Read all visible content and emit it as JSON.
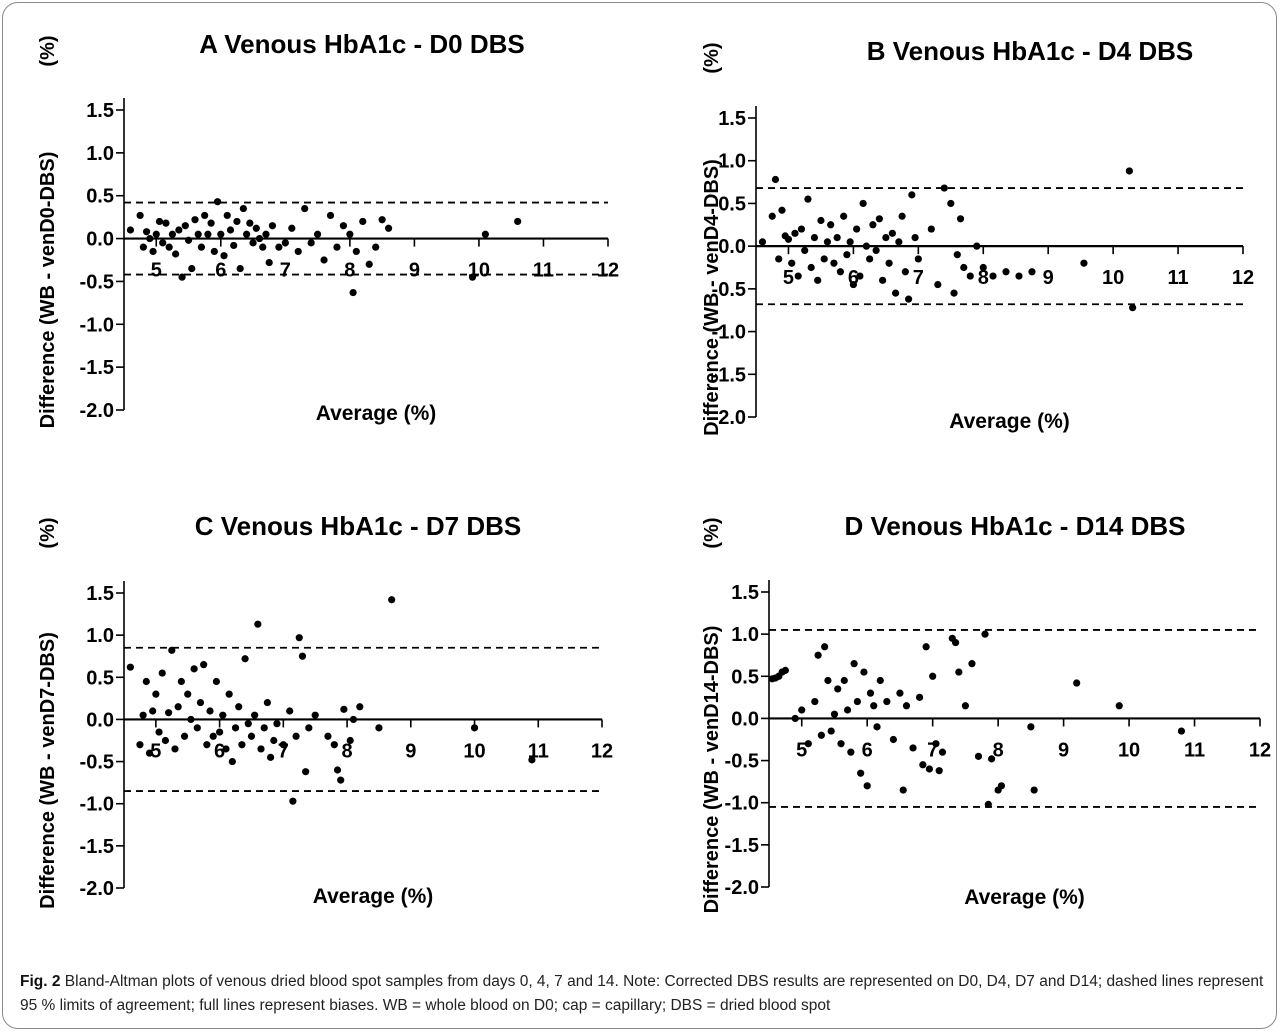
{
  "caption": {
    "label": "Fig. 2",
    "text": "Bland-Altman plots of venous dried blood spot samples from days 0, 4, 7 and 14. Note: Corrected DBS results are represented on D0, D4, D7 and D14; dashed lines represent 95 % limits of agreement; full lines represent biases. WB = whole blood on D0; cap = capillary; DBS = dried blood spot"
  },
  "chart_data": [
    {
      "type": "scatter",
      "title": "A Venous HbA1c - D0 DBS",
      "xlabel": "Average (%)",
      "ylabel": "Difference (WB - venD0-DBS)",
      "ylabel_unit": "(%)",
      "xlim": [
        4.5,
        12
      ],
      "ylim": [
        -2.0,
        1.5
      ],
      "x_ticks": [
        "5",
        "6",
        "7",
        "8",
        "9",
        "10",
        "11",
        "12"
      ],
      "y_ticks": [
        "1.5",
        "1.0",
        "0.5",
        "0.0",
        "-0.5",
        "-1.0",
        "-1.5",
        "-2.0"
      ],
      "bias": 0.0,
      "limits_of_agreement": [
        -0.42,
        0.42
      ],
      "points": [
        [
          4.6,
          0.1
        ],
        [
          4.75,
          0.27
        ],
        [
          4.8,
          -0.1
        ],
        [
          4.85,
          0.08
        ],
        [
          4.9,
          0.0
        ],
        [
          4.95,
          -0.15
        ],
        [
          5.0,
          0.05
        ],
        [
          5.05,
          0.2
        ],
        [
          5.1,
          -0.05
        ],
        [
          5.15,
          0.18
        ],
        [
          5.2,
          -0.1
        ],
        [
          5.25,
          0.05
        ],
        [
          5.3,
          -0.18
        ],
        [
          5.35,
          0.1
        ],
        [
          5.4,
          -0.45
        ],
        [
          5.45,
          0.15
        ],
        [
          5.5,
          -0.02
        ],
        [
          5.55,
          -0.35
        ],
        [
          5.6,
          0.22
        ],
        [
          5.65,
          0.05
        ],
        [
          5.7,
          -0.1
        ],
        [
          5.75,
          0.27
        ],
        [
          5.8,
          0.05
        ],
        [
          5.85,
          0.18
        ],
        [
          5.9,
          -0.15
        ],
        [
          5.95,
          0.43
        ],
        [
          6.0,
          0.05
        ],
        [
          6.05,
          -0.2
        ],
        [
          6.1,
          0.27
        ],
        [
          6.15,
          0.1
        ],
        [
          6.2,
          -0.08
        ],
        [
          6.25,
          0.2
        ],
        [
          6.3,
          -0.35
        ],
        [
          6.35,
          0.35
        ],
        [
          6.4,
          0.05
        ],
        [
          6.45,
          0.18
        ],
        [
          6.5,
          -0.05
        ],
        [
          6.55,
          0.12
        ],
        [
          6.6,
          0.0
        ],
        [
          6.65,
          -0.1
        ],
        [
          6.7,
          0.05
        ],
        [
          6.75,
          -0.28
        ],
        [
          6.8,
          0.15
        ],
        [
          6.9,
          -0.1
        ],
        [
          7.0,
          -0.05
        ],
        [
          7.1,
          0.12
        ],
        [
          7.2,
          -0.15
        ],
        [
          7.3,
          0.35
        ],
        [
          7.4,
          -0.05
        ],
        [
          7.5,
          0.05
        ],
        [
          7.6,
          -0.25
        ],
        [
          7.7,
          0.27
        ],
        [
          7.8,
          -0.1
        ],
        [
          7.9,
          0.15
        ],
        [
          8.0,
          0.05
        ],
        [
          8.05,
          -0.63
        ],
        [
          8.1,
          -0.15
        ],
        [
          8.2,
          0.2
        ],
        [
          8.3,
          -0.3
        ],
        [
          8.4,
          -0.1
        ],
        [
          8.5,
          0.22
        ],
        [
          8.6,
          0.12
        ],
        [
          9.9,
          -0.45
        ],
        [
          10.1,
          0.05
        ],
        [
          10.6,
          0.2
        ]
      ]
    },
    {
      "type": "scatter",
      "title": "B Venous HbA1c - D4 DBS",
      "xlabel": "Average (%)",
      "ylabel": "Difference (WB - venD4-DBS)",
      "ylabel_unit": "(%)",
      "xlim": [
        4.5,
        12
      ],
      "ylim": [
        -2.0,
        1.5
      ],
      "x_ticks": [
        "5",
        "6",
        "7",
        "8",
        "9",
        "10",
        "11",
        "12"
      ],
      "y_ticks": [
        "1.5",
        "1.0",
        "0.5",
        "0.0",
        "-0.5",
        "-1.0",
        "-1.5",
        "-2.0"
      ],
      "bias": 0.0,
      "limits_of_agreement": [
        -0.68,
        0.68
      ],
      "points": [
        [
          4.6,
          0.05
        ],
        [
          4.75,
          0.35
        ],
        [
          4.8,
          0.78
        ],
        [
          4.85,
          -0.15
        ],
        [
          4.9,
          0.42
        ],
        [
          4.95,
          0.12
        ],
        [
          5.0,
          0.08
        ],
        [
          5.05,
          -0.2
        ],
        [
          5.1,
          0.15
        ],
        [
          5.15,
          -0.35
        ],
        [
          5.2,
          0.2
        ],
        [
          5.25,
          -0.05
        ],
        [
          5.3,
          0.55
        ],
        [
          5.35,
          -0.25
        ],
        [
          5.4,
          0.1
        ],
        [
          5.45,
          -0.4
        ],
        [
          5.5,
          0.3
        ],
        [
          5.55,
          -0.15
        ],
        [
          5.6,
          0.05
        ],
        [
          5.65,
          0.25
        ],
        [
          5.7,
          -0.2
        ],
        [
          5.75,
          0.1
        ],
        [
          5.8,
          -0.3
        ],
        [
          5.85,
          0.35
        ],
        [
          5.9,
          -0.1
        ],
        [
          5.95,
          0.05
        ],
        [
          6.0,
          -0.45
        ],
        [
          6.05,
          0.2
        ],
        [
          6.1,
          -0.35
        ],
        [
          6.15,
          0.5
        ],
        [
          6.2,
          0.0
        ],
        [
          6.25,
          -0.15
        ],
        [
          6.3,
          0.25
        ],
        [
          6.35,
          -0.05
        ],
        [
          6.4,
          0.32
        ],
        [
          6.45,
          -0.4
        ],
        [
          6.5,
          0.1
        ],
        [
          6.55,
          -0.2
        ],
        [
          6.6,
          0.15
        ],
        [
          6.65,
          -0.55
        ],
        [
          6.7,
          0.05
        ],
        [
          6.75,
          0.35
        ],
        [
          6.8,
          -0.3
        ],
        [
          6.85,
          -0.62
        ],
        [
          6.9,
          0.6
        ],
        [
          6.95,
          0.1
        ],
        [
          7.0,
          -0.15
        ],
        [
          7.2,
          0.2
        ],
        [
          7.3,
          -0.45
        ],
        [
          7.4,
          0.68
        ],
        [
          7.5,
          0.5
        ],
        [
          7.55,
          -0.55
        ],
        [
          7.6,
          -0.1
        ],
        [
          7.65,
          0.32
        ],
        [
          7.7,
          -0.25
        ],
        [
          7.8,
          -0.35
        ],
        [
          7.9,
          0.0
        ],
        [
          8.0,
          -0.25
        ],
        [
          8.15,
          -0.35
        ],
        [
          8.35,
          -0.3
        ],
        [
          8.55,
          -0.35
        ],
        [
          8.75,
          -0.3
        ],
        [
          9.55,
          -0.2
        ],
        [
          10.25,
          0.88
        ],
        [
          10.3,
          -0.72
        ]
      ]
    },
    {
      "type": "scatter",
      "title": "C Venous HbA1c - D7 DBS",
      "xlabel": "Average (%)",
      "ylabel": "Difference (WB - venD7-DBS)",
      "ylabel_unit": "(%)",
      "xlim": [
        4.5,
        12
      ],
      "ylim": [
        -2.0,
        1.5
      ],
      "x_ticks": [
        "5",
        "6",
        "7",
        "8",
        "9",
        "10",
        "11",
        "12"
      ],
      "y_ticks": [
        "1.5",
        "1.0",
        "0.5",
        "0.0",
        "-0.5",
        "-1.0",
        "-1.5",
        "-2.0"
      ],
      "bias": 0.0,
      "limits_of_agreement": [
        -0.85,
        0.85
      ],
      "points": [
        [
          4.6,
          0.62
        ],
        [
          4.75,
          -0.3
        ],
        [
          4.8,
          0.05
        ],
        [
          4.85,
          0.45
        ],
        [
          4.9,
          -0.4
        ],
        [
          4.95,
          0.1
        ],
        [
          5.0,
          0.3
        ],
        [
          5.05,
          -0.15
        ],
        [
          5.1,
          0.55
        ],
        [
          5.15,
          -0.25
        ],
        [
          5.2,
          0.08
        ],
        [
          5.25,
          0.82
        ],
        [
          5.3,
          -0.35
        ],
        [
          5.35,
          0.15
        ],
        [
          5.4,
          0.45
        ],
        [
          5.45,
          -0.2
        ],
        [
          5.5,
          0.3
        ],
        [
          5.55,
          0.0
        ],
        [
          5.6,
          0.6
        ],
        [
          5.65,
          -0.1
        ],
        [
          5.7,
          0.2
        ],
        [
          5.75,
          0.65
        ],
        [
          5.8,
          -0.3
        ],
        [
          5.85,
          0.1
        ],
        [
          5.9,
          -0.2
        ],
        [
          5.95,
          0.45
        ],
        [
          6.0,
          -0.15
        ],
        [
          6.05,
          0.05
        ],
        [
          6.1,
          -0.35
        ],
        [
          6.15,
          0.3
        ],
        [
          6.2,
          -0.5
        ],
        [
          6.25,
          -0.1
        ],
        [
          6.3,
          0.15
        ],
        [
          6.35,
          -0.3
        ],
        [
          6.4,
          0.72
        ],
        [
          6.45,
          -0.05
        ],
        [
          6.5,
          -0.2
        ],
        [
          6.55,
          0.05
        ],
        [
          6.6,
          1.13
        ],
        [
          6.65,
          -0.35
        ],
        [
          6.7,
          -0.1
        ],
        [
          6.75,
          0.2
        ],
        [
          6.8,
          -0.45
        ],
        [
          6.85,
          -0.25
        ],
        [
          6.9,
          -0.05
        ],
        [
          7.0,
          -0.3
        ],
        [
          7.1,
          0.1
        ],
        [
          7.15,
          -0.97
        ],
        [
          7.2,
          -0.2
        ],
        [
          7.25,
          0.97
        ],
        [
          7.3,
          0.75
        ],
        [
          7.35,
          -0.62
        ],
        [
          7.4,
          -0.1
        ],
        [
          7.5,
          0.05
        ],
        [
          7.7,
          -0.2
        ],
        [
          7.8,
          -0.3
        ],
        [
          7.85,
          -0.6
        ],
        [
          7.9,
          -0.72
        ],
        [
          7.95,
          0.12
        ],
        [
          8.05,
          -0.25
        ],
        [
          8.1,
          0.0
        ],
        [
          8.2,
          0.15
        ],
        [
          8.5,
          -0.1
        ],
        [
          8.7,
          1.42
        ],
        [
          10.0,
          -0.1
        ],
        [
          10.9,
          -0.48
        ]
      ]
    },
    {
      "type": "scatter",
      "title": "D Venous HbA1c - D14 DBS",
      "xlabel": "Average (%)",
      "ylabel": "Difference (WB - venD14-DBS)",
      "ylabel_unit": "(%)",
      "xlim": [
        4.5,
        12
      ],
      "ylim": [
        -2.0,
        1.5
      ],
      "x_ticks": [
        "5",
        "6",
        "7",
        "8",
        "9",
        "10",
        "11",
        "12"
      ],
      "y_ticks": [
        "1.5",
        "1.0",
        "0.5",
        "0.0",
        "-0.5",
        "-1.0",
        "-1.5",
        "-2.0"
      ],
      "bias": 0.0,
      "limits_of_agreement": [
        -1.05,
        1.05
      ],
      "points": [
        [
          4.55,
          0.47
        ],
        [
          4.6,
          0.48
        ],
        [
          4.65,
          0.5
        ],
        [
          4.7,
          0.55
        ],
        [
          4.75,
          0.57
        ],
        [
          4.9,
          0.0
        ],
        [
          5.0,
          0.1
        ],
        [
          5.1,
          -0.3
        ],
        [
          5.2,
          0.2
        ],
        [
          5.25,
          0.75
        ],
        [
          5.3,
          -0.2
        ],
        [
          5.35,
          0.85
        ],
        [
          5.4,
          0.45
        ],
        [
          5.45,
          -0.15
        ],
        [
          5.5,
          0.05
        ],
        [
          5.55,
          0.35
        ],
        [
          5.6,
          -0.3
        ],
        [
          5.65,
          0.45
        ],
        [
          5.7,
          0.1
        ],
        [
          5.75,
          -0.4
        ],
        [
          5.8,
          0.65
        ],
        [
          5.85,
          0.2
        ],
        [
          5.9,
          -0.65
        ],
        [
          5.95,
          0.55
        ],
        [
          6.0,
          -0.8
        ],
        [
          6.05,
          0.3
        ],
        [
          6.1,
          0.15
        ],
        [
          6.15,
          -0.1
        ],
        [
          6.2,
          0.45
        ],
        [
          6.3,
          0.2
        ],
        [
          6.4,
          -0.25
        ],
        [
          6.5,
          0.3
        ],
        [
          6.55,
          -0.85
        ],
        [
          6.6,
          0.15
        ],
        [
          6.7,
          -0.35
        ],
        [
          6.8,
          0.25
        ],
        [
          6.85,
          -0.55
        ],
        [
          6.9,
          0.85
        ],
        [
          6.95,
          -0.6
        ],
        [
          7.0,
          0.5
        ],
        [
          7.05,
          -0.3
        ],
        [
          7.1,
          -0.62
        ],
        [
          7.15,
          -0.4
        ],
        [
          7.3,
          0.95
        ],
        [
          7.35,
          0.9
        ],
        [
          7.4,
          0.55
        ],
        [
          7.5,
          0.15
        ],
        [
          7.6,
          0.65
        ],
        [
          7.7,
          -0.45
        ],
        [
          7.8,
          1.0
        ],
        [
          7.85,
          -1.02
        ],
        [
          7.9,
          -0.48
        ],
        [
          8.0,
          -0.85
        ],
        [
          8.05,
          -0.8
        ],
        [
          8.55,
          -0.85
        ],
        [
          8.5,
          -0.1
        ],
        [
          9.2,
          0.42
        ],
        [
          9.85,
          0.15
        ],
        [
          10.8,
          -0.15
        ]
      ]
    }
  ]
}
